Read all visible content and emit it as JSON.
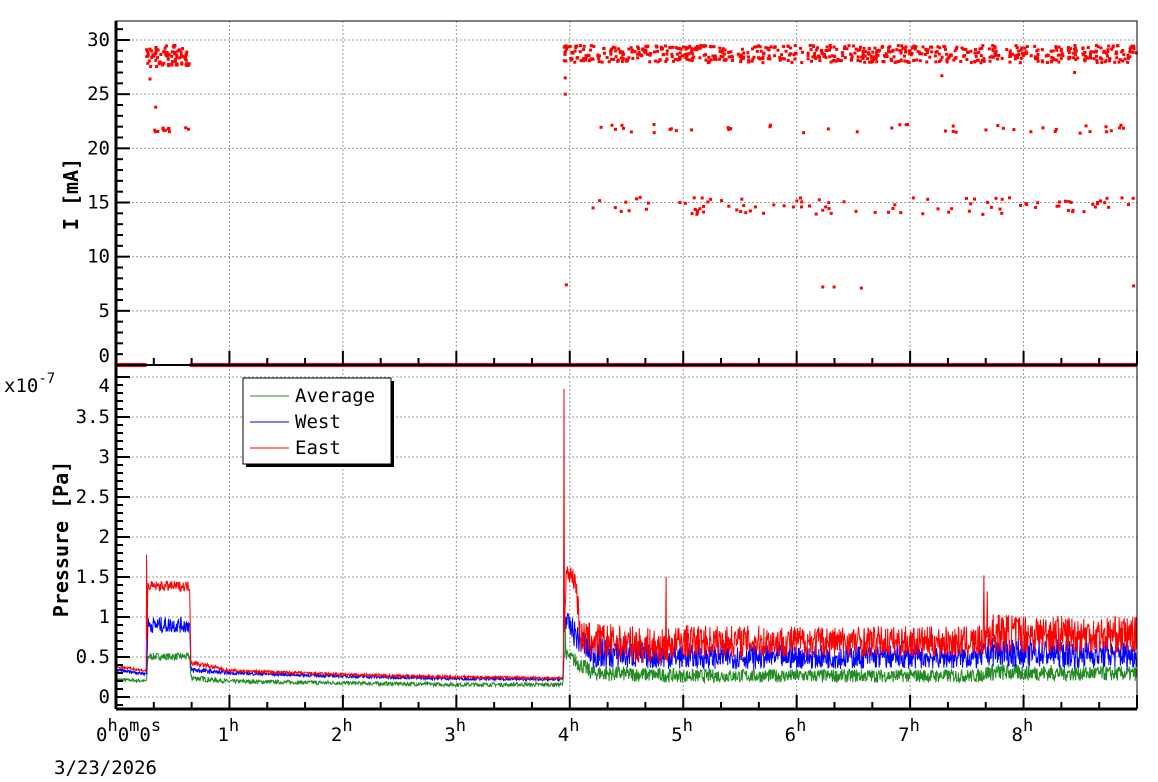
{
  "chart_data": [
    {
      "type": "scatter",
      "title": "",
      "xlabel": "",
      "ylabel": "I [mA]",
      "xlim_hours": [
        0,
        9
      ],
      "ylim": [
        0,
        31
      ],
      "yticks": [
        "0",
        "5",
        "10",
        "15",
        "20",
        "25",
        "30"
      ],
      "grid": true,
      "color": "#ff0000",
      "zero_line_segments_hours": [
        [
          0,
          0.27
        ],
        [
          0.65,
          9
        ]
      ],
      "bands": [
        {
          "t_start": 0.27,
          "t_end": 0.65,
          "level": 28.5,
          "spread": 1.0,
          "density": 90
        },
        {
          "t_start": 0.27,
          "t_end": 0.65,
          "level": 21.7,
          "spread": 0.2,
          "density": 12
        },
        {
          "t_start": 3.95,
          "t_end": 9.0,
          "level": 28.7,
          "spread": 0.8,
          "density": 700
        },
        {
          "t_start": 3.95,
          "t_end": 9.0,
          "level": 21.8,
          "spread": 0.4,
          "density": 45
        },
        {
          "t_start": 4.2,
          "t_end": 9.0,
          "level": 14.7,
          "spread": 0.8,
          "density": 100
        }
      ],
      "outliers": [
        [
          0.35,
          23.8
        ],
        [
          0.3,
          26.4
        ],
        [
          3.96,
          25.0
        ],
        [
          3.96,
          26.5
        ],
        [
          3.97,
          7.4
        ],
        [
          6.23,
          7.2
        ],
        [
          6.33,
          7.2
        ],
        [
          6.57,
          7.1
        ],
        [
          8.97,
          7.3
        ],
        [
          7.28,
          26.7
        ],
        [
          8.45,
          27.0
        ]
      ]
    },
    {
      "type": "line",
      "title": "",
      "xlabel": "",
      "ylabel": "Pressure [Pa]",
      "y_multiplier": "x10",
      "y_exponent": "-7",
      "xlim_hours": [
        0,
        9
      ],
      "ylim": [
        -0.1,
        4
      ],
      "yticks": [
        "0",
        "0.5",
        "1",
        "1.5",
        "2",
        "2.5",
        "3",
        "3.5",
        "4"
      ],
      "xtick_labels": [
        "0",
        "1",
        "2",
        "3",
        "4",
        "5",
        "6",
        "7",
        "8"
      ],
      "x_start_label": {
        "h": "0",
        "m": "0",
        "s": "0"
      },
      "hour_suffix": "h",
      "minute_suffix": "m",
      "second_suffix": "s",
      "date_label": "3/23/2026",
      "grid": true,
      "legend": {
        "position": "top-left",
        "entries": [
          "Average",
          "West",
          "East"
        ]
      },
      "series": [
        {
          "name": "Average",
          "color": "#228b22",
          "envelope": [
            [
              0,
              0.2,
              0.24
            ],
            [
              0.27,
              0.18,
              0.22
            ],
            [
              0.28,
              0.46,
              0.55
            ],
            [
              0.65,
              0.46,
              0.55
            ],
            [
              0.66,
              0.2,
              0.28
            ],
            [
              1,
              0.17,
              0.22
            ],
            [
              2,
              0.15,
              0.2
            ],
            [
              3,
              0.13,
              0.18
            ],
            [
              3.94,
              0.13,
              0.18
            ],
            [
              3.95,
              0.5,
              0.6
            ],
            [
              4.05,
              0.35,
              0.55
            ],
            [
              4.2,
              0.2,
              0.4
            ],
            [
              5,
              0.18,
              0.35
            ],
            [
              7.6,
              0.18,
              0.35
            ],
            [
              7.7,
              0.2,
              0.42
            ],
            [
              9,
              0.2,
              0.38
            ]
          ],
          "spikes": [
            [
              3.96,
              0.95
            ]
          ]
        },
        {
          "name": "West",
          "color": "#0000ff",
          "envelope": [
            [
              0,
              0.32,
              0.36
            ],
            [
              0.27,
              0.27,
              0.31
            ],
            [
              0.28,
              0.8,
              1.0
            ],
            [
              0.65,
              0.8,
              1.0
            ],
            [
              0.66,
              0.3,
              0.38
            ],
            [
              1,
              0.28,
              0.32
            ],
            [
              2,
              0.24,
              0.28
            ],
            [
              3,
              0.21,
              0.25
            ],
            [
              3.94,
              0.2,
              0.24
            ],
            [
              3.95,
              0.9,
              1.1
            ],
            [
              4.05,
              0.6,
              0.95
            ],
            [
              4.2,
              0.35,
              0.75
            ],
            [
              5,
              0.35,
              0.65
            ],
            [
              7.6,
              0.35,
              0.65
            ],
            [
              7.7,
              0.38,
              0.75
            ],
            [
              9,
              0.35,
              0.7
            ]
          ],
          "spikes": [
            [
              3.95,
              2.05
            ]
          ]
        },
        {
          "name": "East",
          "color": "#ff0000",
          "envelope": [
            [
              0,
              0.37,
              0.4
            ],
            [
              0.27,
              0.31,
              0.34
            ],
            [
              0.28,
              1.32,
              1.45
            ],
            [
              0.65,
              1.32,
              1.45
            ],
            [
              0.66,
              0.4,
              0.47
            ],
            [
              1,
              0.31,
              0.35
            ],
            [
              2,
              0.26,
              0.3
            ],
            [
              3,
              0.23,
              0.27
            ],
            [
              3.94,
              0.22,
              0.25
            ],
            [
              3.97,
              1.5,
              1.68
            ],
            [
              4.05,
              1.3,
              1.6
            ],
            [
              4.1,
              0.5,
              0.95
            ],
            [
              4.8,
              0.4,
              0.85
            ],
            [
              5,
              0.5,
              0.9
            ],
            [
              7.6,
              0.5,
              0.88
            ],
            [
              7.7,
              0.55,
              1.05
            ],
            [
              9,
              0.55,
              1.0
            ]
          ],
          "spikes": [
            [
              0.27,
              1.78
            ],
            [
              3.95,
              3.85
            ],
            [
              4.85,
              1.5
            ],
            [
              7.65,
              1.52
            ],
            [
              7.68,
              1.32
            ]
          ]
        }
      ]
    }
  ]
}
